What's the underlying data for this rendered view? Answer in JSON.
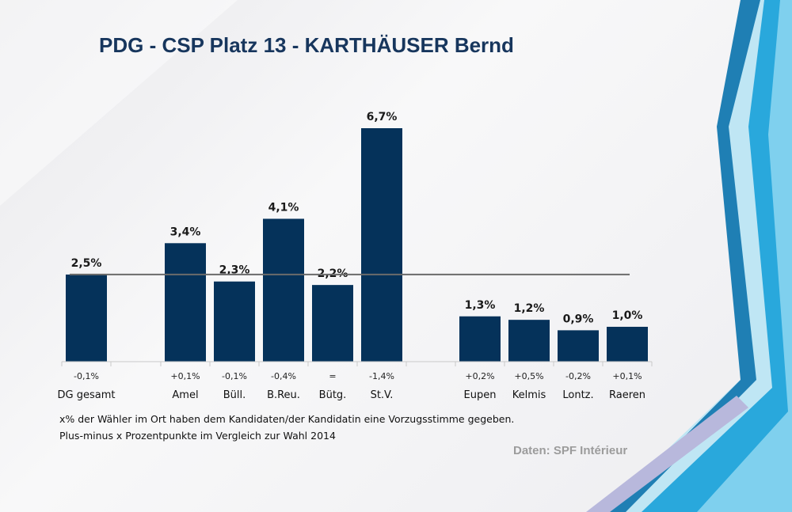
{
  "title": "PDG - CSP Platz 13 - KARTHÄUSER Bernd",
  "notes": [
    "x% der Wähler im Ort haben dem Kandidaten/der Kandidatin eine Vorzugsstimme gegeben.",
    "Plus-minus x Prozentpunkte im Vergleich zur Wahl 2014"
  ],
  "source": "Daten: SPF Intérieur",
  "colors": {
    "bar": "#05325a",
    "title": "#17365d",
    "reference_line": "#6b6b6b",
    "source": "#9c9c9c",
    "accent_blue": "#1e9fd8"
  },
  "chart_data": {
    "type": "bar",
    "title": "PDG - CSP Platz 13 - KARTHÄUSER Bernd",
    "unit": "%",
    "categories": [
      "DG gesamt",
      "Amel",
      "Büll.",
      "B.Reu.",
      "Bütg.",
      "St.V.",
      "Eupen",
      "Kelmis",
      "Lontz.",
      "Raeren"
    ],
    "values": [
      2.5,
      3.4,
      2.3,
      4.1,
      2.2,
      6.7,
      1.3,
      1.2,
      0.9,
      1.0
    ],
    "value_labels": [
      "2,5%",
      "3,4%",
      "2,3%",
      "4,1%",
      "2,2%",
      "6,7%",
      "1,3%",
      "1,2%",
      "0,9%",
      "1,0%"
    ],
    "changes": [
      "-0,1%",
      "+0,1%",
      "-0,1%",
      "-0,4%",
      "=",
      "-1,4%",
      "+0,2%",
      "+0,5%",
      "-0,2%",
      "+0,1%"
    ],
    "reference_line": {
      "value": 2.5
    },
    "ylim": [
      0,
      6.7
    ],
    "grid": false,
    "legend": "none"
  }
}
